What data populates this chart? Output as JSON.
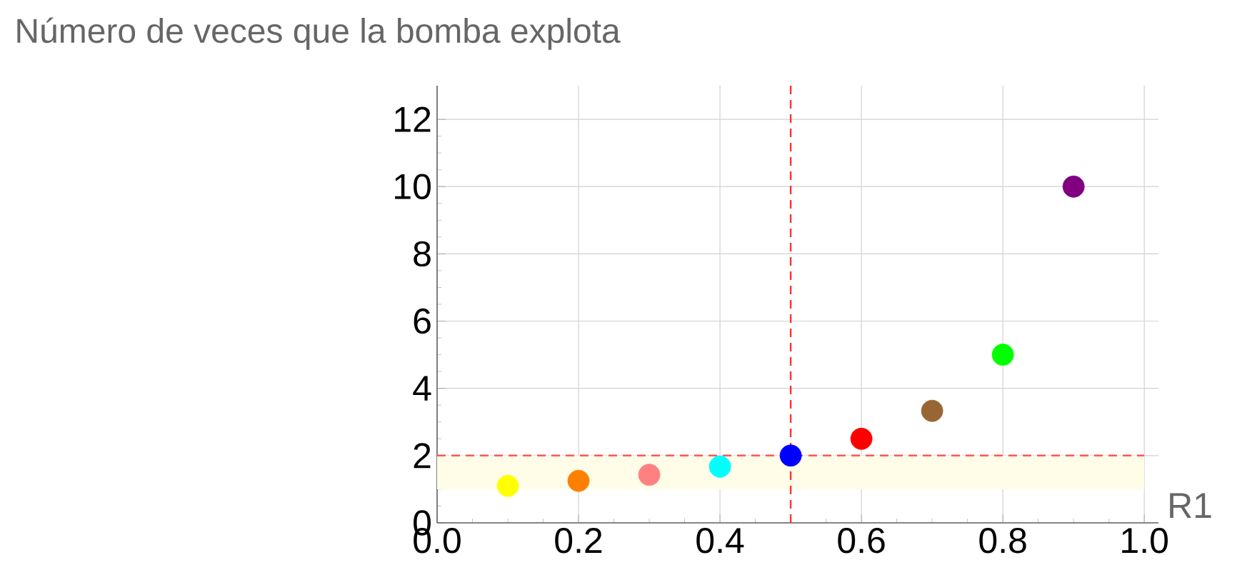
{
  "chart_data": {
    "type": "scatter",
    "ylabel": "Número de veces que la bomba explota",
    "xlabel": "R1",
    "x": [
      0.1,
      0.2,
      0.3,
      0.4,
      0.5,
      0.6,
      0.7,
      0.8,
      0.9
    ],
    "values": [
      1.1,
      1.25,
      1.43,
      1.67,
      2,
      2.5,
      3.33,
      5,
      10
    ],
    "colors": [
      "#ffff00",
      "#ff8000",
      "#ff8080",
      "#00ffff",
      "#0000ff",
      "#ff0000",
      "#996633",
      "#00ff00",
      "#800080"
    ],
    "marker": "circle",
    "xlim": [
      0,
      1.02
    ],
    "ylim": [
      0,
      13
    ],
    "xticks": [
      {
        "value": 0,
        "label": "0.0"
      },
      0.2,
      0.4,
      0.6,
      0.8,
      {
        "value": 1,
        "label": "1.0"
      }
    ],
    "yticks": [
      0,
      2,
      4,
      6,
      8,
      10,
      12
    ],
    "grid": true,
    "ref_lines": [
      {
        "axis": "x",
        "value": 0.5,
        "color": "#ff3333",
        "line_style": "dashed"
      },
      {
        "axis": "y",
        "value": 2,
        "color": "#ff5555",
        "line_style": "dashed"
      }
    ],
    "bands": [
      {
        "axis": "y",
        "from": 1,
        "to": 2,
        "color": "#fffde8"
      }
    ]
  }
}
